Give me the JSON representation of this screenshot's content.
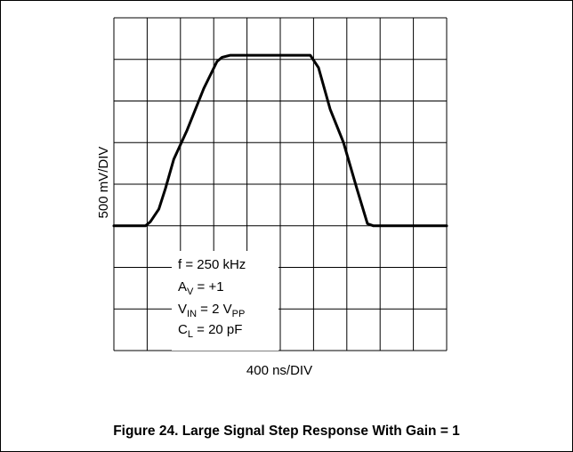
{
  "chart_data": {
    "type": "line",
    "title": "",
    "xlabel": "400 ns/DIV",
    "ylabel": "500 mV/DIV",
    "grid": true,
    "x_divisions": 10,
    "y_divisions": 8,
    "xlim": [
      0,
      10
    ],
    "ylim": [
      0,
      8
    ],
    "series": [
      {
        "x": [
          0,
          0.95,
          1.1,
          1.35,
          1.55,
          1.8,
          2.2,
          2.7,
          3.1,
          3.25,
          3.5,
          3.8,
          5.9,
          6.15,
          6.5,
          6.9,
          7.3,
          7.62,
          7.8,
          10
        ],
        "y": [
          3.0,
          3.0,
          3.1,
          3.4,
          3.9,
          4.6,
          5.3,
          6.3,
          6.95,
          7.05,
          7.1,
          7.1,
          7.1,
          6.8,
          5.8,
          5.0,
          3.9,
          3.05,
          3.0,
          3.0
        ]
      }
    ]
  },
  "conditions": {
    "freq": "f = 250 kHz",
    "gain_main": "A",
    "gain_sub": "V",
    "gain_rest": " = +1",
    "vin_main": "V",
    "vin_sub": "IN",
    "vin_rest": " = 2 V",
    "vin_sub2": "PP",
    "cl_main": "C",
    "cl_sub": "L",
    "cl_rest": " = 20 pF"
  },
  "caption": "Figure 24. Large Signal Step Response With Gain = 1"
}
